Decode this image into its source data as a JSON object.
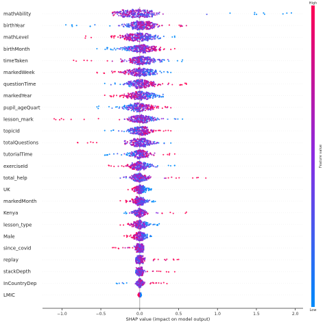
{
  "chart_data": {
    "type": "scatter",
    "subtype": "shap-beeswarm",
    "title": "",
    "xlabel": "SHAP value (impact on model output)",
    "ylabel": "",
    "xlim": [
      -1.25,
      2.1
    ],
    "x_ticks": [
      "−1.0",
      "−0.5",
      "0.0",
      "0.5",
      "1.0",
      "1.5",
      "2.0"
    ],
    "x_tick_values": [
      -1.0,
      -0.5,
      0.0,
      0.5,
      1.0,
      1.5,
      2.0
    ],
    "grid": false,
    "colorbar": {
      "label": "Feature value",
      "high_label": "High",
      "low_label": "Low",
      "high_color": "#ff0052",
      "mid_color": "#8a2be2",
      "low_color": "#008bfb"
    },
    "features": [
      {
        "name": "mathAbility",
        "min": -0.35,
        "max": 1.95,
        "spread": 0.14,
        "center": -0.05,
        "highSide": "left"
      },
      {
        "name": "birthYear",
        "min": -0.95,
        "max": 0.6,
        "spread": 0.11,
        "center": 0.02,
        "highSide": "right"
      },
      {
        "name": "mathLevel",
        "min": -0.7,
        "max": 0.45,
        "spread": 0.12,
        "center": -0.02,
        "highSide": "left"
      },
      {
        "name": "birthMonth",
        "min": -0.55,
        "max": 0.45,
        "spread": 0.11,
        "center": 0.02,
        "highSide": "right"
      },
      {
        "name": "timeTaken",
        "min": -0.85,
        "max": 0.55,
        "spread": 0.1,
        "center": 0.02,
        "highSide": "left"
      },
      {
        "name": "markedWeek",
        "min": -0.55,
        "max": 0.4,
        "spread": 0.1,
        "center": 0.0,
        "highSide": "left"
      },
      {
        "name": "questionTime",
        "min": -0.45,
        "max": 0.6,
        "spread": 0.1,
        "center": 0.02,
        "highSide": "right"
      },
      {
        "name": "markedYear",
        "min": -0.45,
        "max": 0.3,
        "spread": 0.1,
        "center": 0.0,
        "highSide": "left"
      },
      {
        "name": "pupil_ageQuart",
        "min": -0.55,
        "max": 0.4,
        "spread": 0.1,
        "center": 0.0,
        "highSide": "right"
      },
      {
        "name": "lesson_mark",
        "min": -1.1,
        "max": 0.55,
        "spread": 0.09,
        "center": 0.02,
        "highSide": "left"
      },
      {
        "name": "topicId",
        "min": -0.45,
        "max": 0.4,
        "spread": 0.08,
        "center": 0.0,
        "highSide": "right"
      },
      {
        "name": "totalQuestions",
        "min": -0.8,
        "max": 0.4,
        "spread": 0.08,
        "center": 0.0,
        "highSide": "left"
      },
      {
        "name": "tutorialTime",
        "min": -0.45,
        "max": 0.45,
        "spread": 0.07,
        "center": 0.0,
        "highSide": "right"
      },
      {
        "name": "exerciseId",
        "min": -0.4,
        "max": 0.45,
        "spread": 0.07,
        "center": 0.0,
        "highSide": "left"
      },
      {
        "name": "total_help",
        "min": -0.25,
        "max": 0.85,
        "spread": 0.06,
        "center": 0.0,
        "highSide": "right"
      },
      {
        "name": "UK",
        "min": -0.15,
        "max": 0.15,
        "spread": 0.04,
        "center": 0.0,
        "highSide": "left"
      },
      {
        "name": "markedMonth",
        "min": -0.25,
        "max": 0.2,
        "spread": 0.05,
        "center": 0.0,
        "highSide": "left"
      },
      {
        "name": "Kenya",
        "min": -0.2,
        "max": 0.6,
        "spread": 0.04,
        "center": 0.0,
        "highSide": "right"
      },
      {
        "name": "lesson_type",
        "min": -0.25,
        "max": 0.25,
        "spread": 0.05,
        "center": 0.0,
        "highSide": "left"
      },
      {
        "name": "Male",
        "min": -0.2,
        "max": 0.15,
        "spread": 0.04,
        "center": 0.0,
        "highSide": "left"
      },
      {
        "name": "since_covid",
        "min": -0.35,
        "max": 0.05,
        "spread": 0.03,
        "center": 0.0,
        "highSide": "left"
      },
      {
        "name": "replay",
        "min": -0.05,
        "max": 0.5,
        "spread": 0.03,
        "center": 0.0,
        "highSide": "right"
      },
      {
        "name": "stackDepth",
        "min": -0.05,
        "max": 0.45,
        "spread": 0.03,
        "center": 0.0,
        "highSide": "right"
      },
      {
        "name": "InCountryDep",
        "min": -0.3,
        "max": 0.35,
        "spread": 0.02,
        "center": 0.0,
        "highSide": "right"
      },
      {
        "name": "LMIC",
        "min": -0.02,
        "max": 0.02,
        "spread": 0.01,
        "center": 0.0,
        "highSide": "left"
      }
    ]
  }
}
